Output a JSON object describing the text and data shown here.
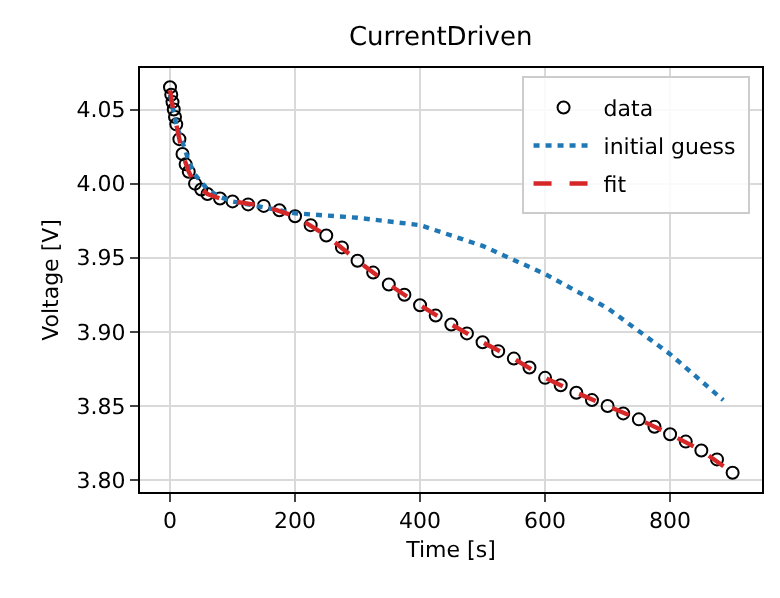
{
  "chart_data": {
    "type": "line",
    "title": "CurrentDriven",
    "xlabel": "Time [s]",
    "ylabel": "Voltage [V]",
    "xlim": [
      -48,
      947
    ],
    "xticks": [
      0,
      200,
      400,
      600,
      800
    ],
    "ylim": [
      3.792,
      4.078
    ],
    "yticks": [
      {
        "value": 3.8,
        "label": "3.80"
      },
      3.85,
      {
        "value": 3.9,
        "label": "3.90"
      },
      3.95,
      {
        "value": 4,
        "label": "4.00"
      },
      4.05
    ],
    "grid": true,
    "legend": "top right",
    "series": [
      {
        "name": "data",
        "type": "scatter",
        "marker": "circle",
        "color": "#000000",
        "x": [
          0,
          2,
          4,
          6,
          8,
          10,
          15,
          20,
          25,
          30,
          40,
          50,
          60,
          80,
          100,
          125,
          150,
          175,
          200,
          225,
          250,
          275,
          300,
          325,
          350,
          375,
          400,
          425,
          450,
          475,
          500,
          525,
          550,
          575,
          600,
          625,
          650,
          675,
          700,
          725,
          750,
          775,
          800,
          825,
          850,
          875,
          900
        ],
        "values": [
          4.065,
          4.06,
          4.055,
          4.05,
          4.045,
          4.04,
          4.03,
          4.02,
          4.013,
          4.008,
          4.0,
          3.996,
          3.993,
          3.99,
          3.988,
          3.986,
          3.985,
          3.982,
          3.978,
          3.972,
          3.965,
          3.957,
          3.948,
          3.94,
          3.932,
          3.925,
          3.918,
          3.911,
          3.905,
          3.899,
          3.893,
          3.887,
          3.882,
          3.876,
          3.869,
          3.864,
          3.859,
          3.854,
          3.85,
          3.845,
          3.841,
          3.836,
          3.831,
          3.826,
          3.82,
          3.814,
          3.805
        ]
      },
      {
        "name": "initial guess",
        "type": "line",
        "line_style": "dotted",
        "color": "#1f77b4",
        "x": [
          0,
          10,
          20,
          30,
          40,
          60,
          80,
          100,
          150,
          200,
          300,
          400,
          500,
          600,
          700,
          800,
          885
        ],
        "values": [
          4.06,
          4.04,
          4.028,
          4.015,
          4.006,
          3.996,
          3.991,
          3.988,
          3.984,
          3.98,
          3.977,
          3.972,
          3.958,
          3.939,
          3.916,
          3.885,
          3.854
        ]
      },
      {
        "name": "fit",
        "line_style": "dashed",
        "color": "#d62728",
        "x": [
          0,
          5,
          10,
          20,
          30,
          40,
          60,
          80,
          100,
          150,
          200,
          250,
          300,
          350,
          400,
          450,
          500,
          550,
          600,
          650,
          700,
          750,
          800,
          850,
          900
        ],
        "values": [
          4.063,
          4.05,
          4.04,
          4.02,
          4.008,
          4.0,
          3.993,
          3.99,
          3.988,
          3.985,
          3.978,
          3.965,
          3.948,
          3.932,
          3.918,
          3.905,
          3.893,
          3.882,
          3.869,
          3.859,
          3.85,
          3.841,
          3.831,
          3.82,
          3.805
        ]
      }
    ]
  }
}
